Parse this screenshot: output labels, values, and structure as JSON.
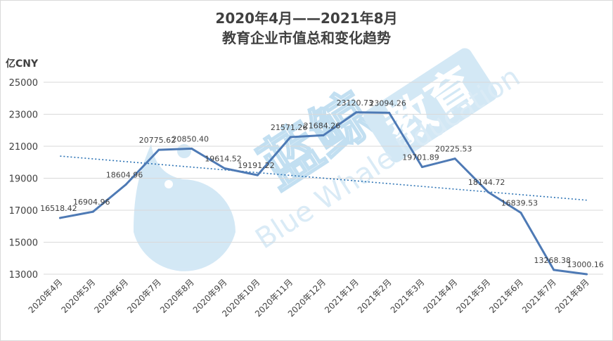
{
  "title_line1": "2020年4月——2021年8月",
  "title_line2": "教育企业市值总和变化趋势",
  "yunit": "亿CNY",
  "watermark": {
    "cn_text": "蓝鲸",
    "badge_text": "教育",
    "en_text": "Blue Whale Education"
  },
  "colors": {
    "line": "#4e7ab5",
    "trend": "#2e74b5",
    "grid": "#d9d9d9",
    "text": "#404040",
    "watermark": "#cfe6f5"
  },
  "chart_data": {
    "type": "line",
    "categories": [
      "2020年4月",
      "2020年5月",
      "2020年6月",
      "2020年7月",
      "2020年8月",
      "2020年9月",
      "2020年10月",
      "2020年11月",
      "2020年12月",
      "2021年1月",
      "2021年2月",
      "2021年3月",
      "2021年4月",
      "2021年5月",
      "2021年6月",
      "2021年7月",
      "2021年8月"
    ],
    "series": [
      {
        "values": [
          16518.42,
          16904.96,
          18604.96,
          20775.62,
          20850.4,
          19614.52,
          19191.22,
          21571.26,
          21684.26,
          23120.73,
          23094.26,
          19701.89,
          20225.53,
          18144.72,
          16839.53,
          13268.38,
          13000.16
        ],
        "labels": [
          "16518.42",
          "16904.96",
          "18604.96",
          "20775.62",
          "20850.40",
          "19614.52",
          "19191.22",
          "21571.26",
          "21684.26",
          "23120.73",
          "23094.26",
          "19701.89",
          "20225.53",
          "18144.72",
          "16839.53",
          "13268.38",
          "13000.16"
        ]
      }
    ],
    "trendline": "linear",
    "yticks": [
      "13000",
      "15000",
      "17000",
      "19000",
      "21000",
      "23000",
      "25000"
    ],
    "ylim": [
      13000,
      25000
    ],
    "grid": true,
    "legend": "none"
  }
}
